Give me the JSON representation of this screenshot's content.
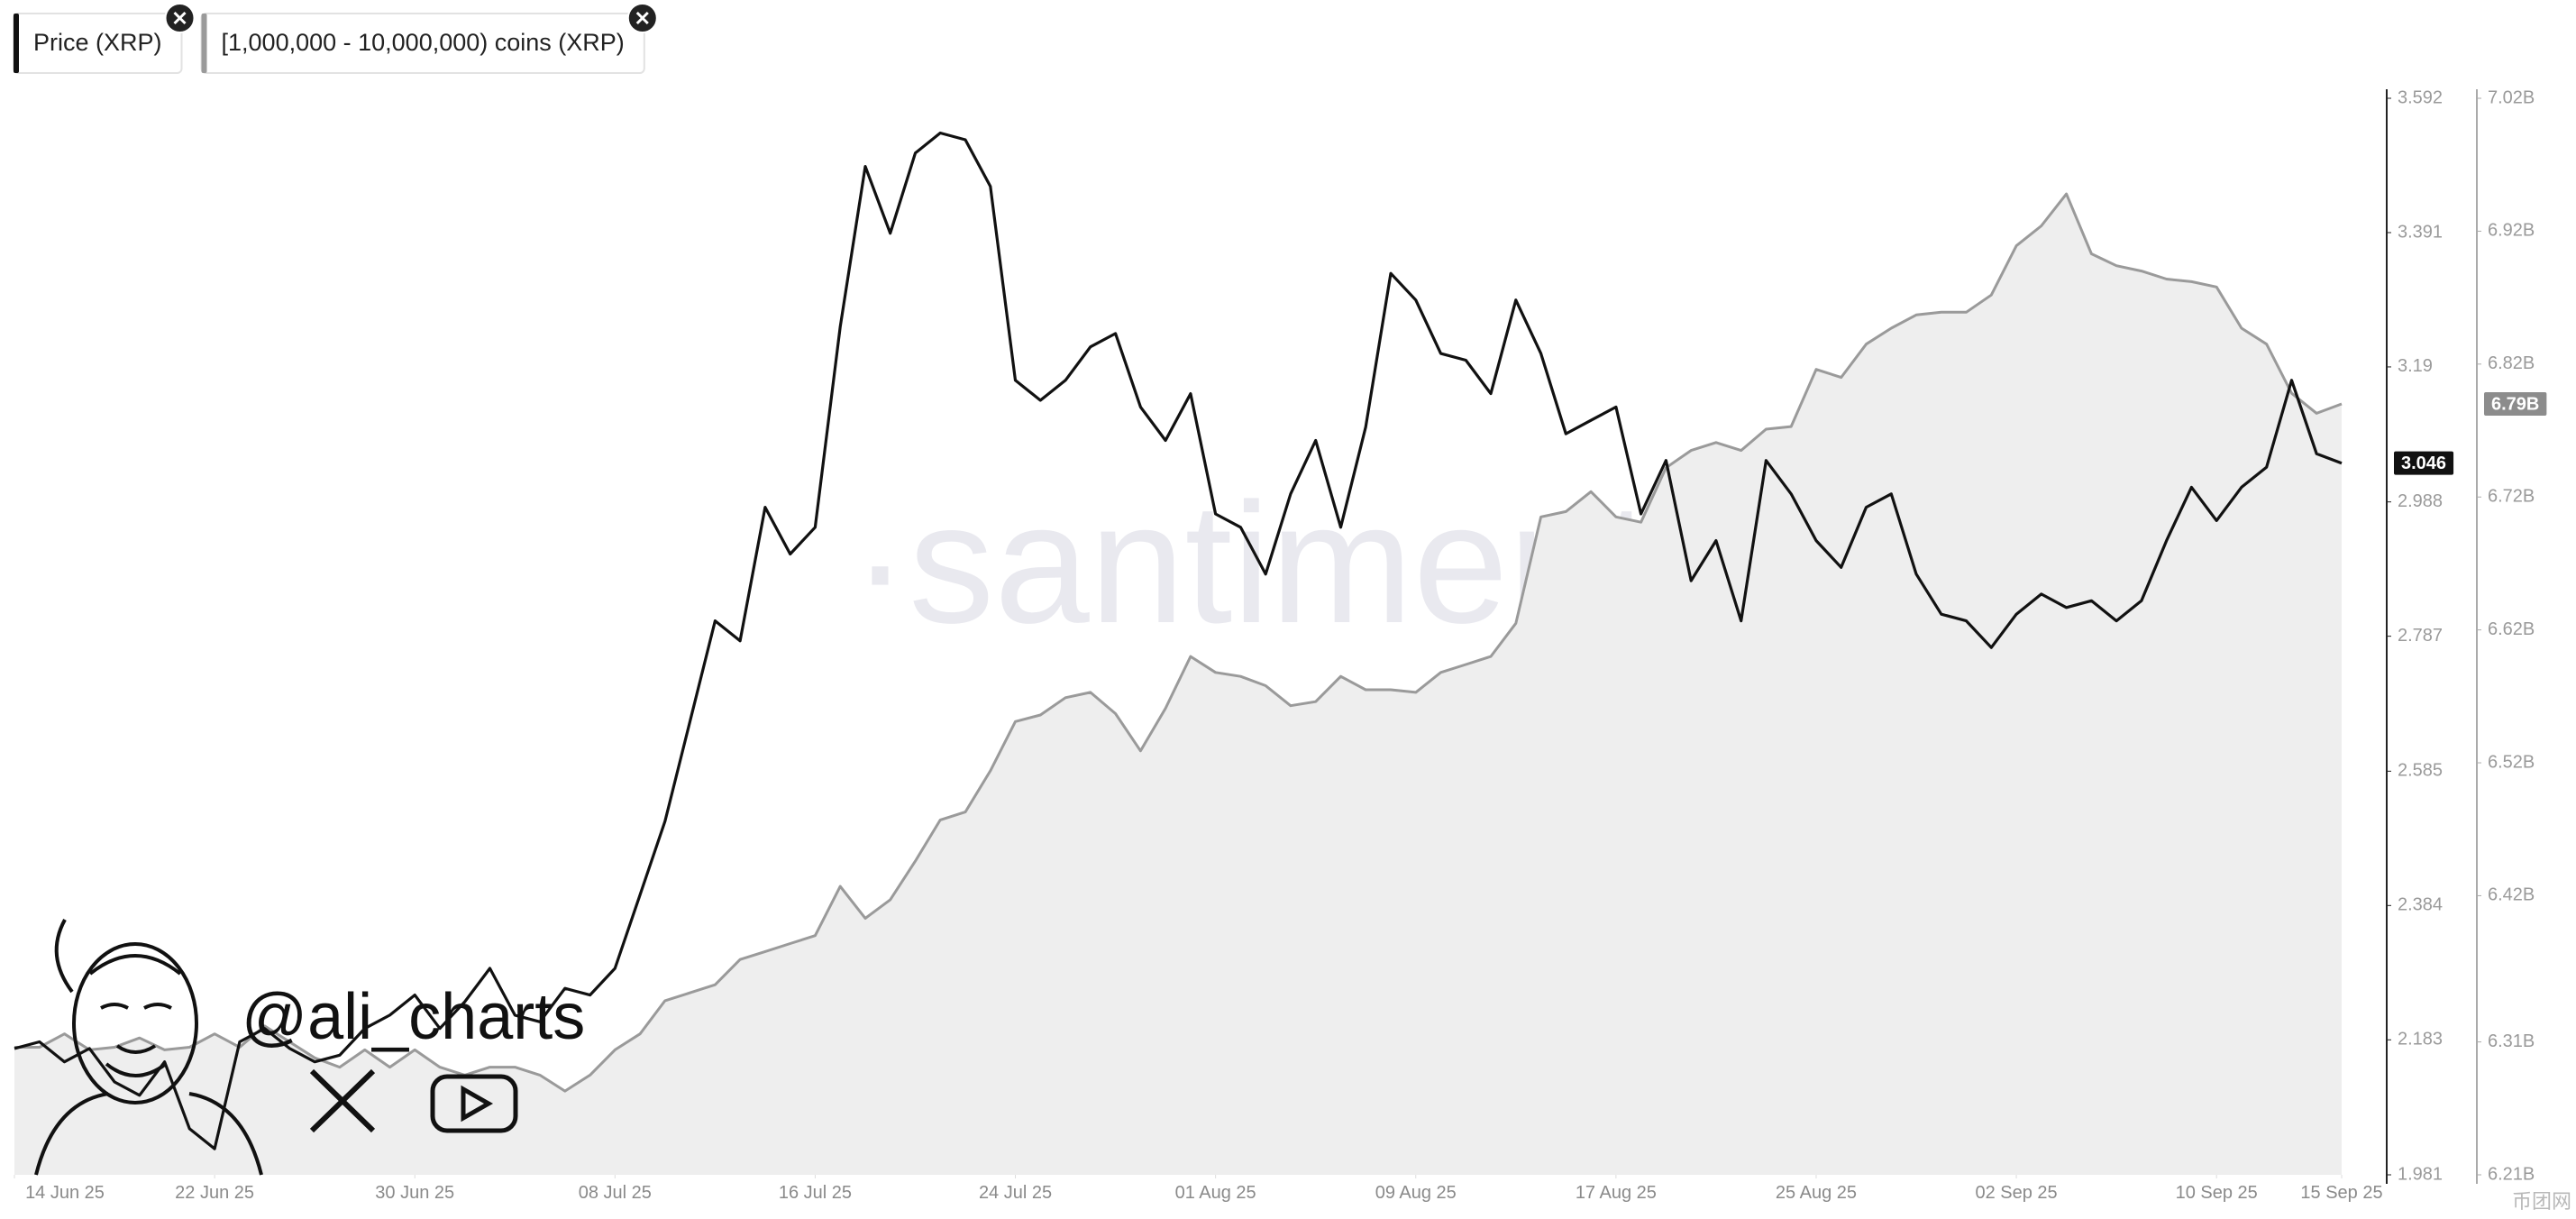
{
  "chart_data": {
    "type": "line",
    "x": [
      "2025-06-14",
      "2025-06-15",
      "2025-06-16",
      "2025-06-17",
      "2025-06-18",
      "2025-06-19",
      "2025-06-20",
      "2025-06-21",
      "2025-06-22",
      "2025-06-23",
      "2025-06-24",
      "2025-06-25",
      "2025-06-26",
      "2025-06-27",
      "2025-06-28",
      "2025-06-29",
      "2025-06-30",
      "2025-07-01",
      "2025-07-02",
      "2025-07-03",
      "2025-07-04",
      "2025-07-05",
      "2025-07-06",
      "2025-07-07",
      "2025-07-08",
      "2025-07-09",
      "2025-07-10",
      "2025-07-11",
      "2025-07-12",
      "2025-07-13",
      "2025-07-14",
      "2025-07-15",
      "2025-07-16",
      "2025-07-17",
      "2025-07-18",
      "2025-07-19",
      "2025-07-20",
      "2025-07-21",
      "2025-07-22",
      "2025-07-23",
      "2025-07-24",
      "2025-07-25",
      "2025-07-26",
      "2025-07-27",
      "2025-07-28",
      "2025-07-29",
      "2025-07-30",
      "2025-07-31",
      "2025-08-01",
      "2025-08-02",
      "2025-08-03",
      "2025-08-04",
      "2025-08-05",
      "2025-08-06",
      "2025-08-07",
      "2025-08-08",
      "2025-08-09",
      "2025-08-10",
      "2025-08-11",
      "2025-08-12",
      "2025-08-13",
      "2025-08-14",
      "2025-08-15",
      "2025-08-16",
      "2025-08-17",
      "2025-08-18",
      "2025-08-19",
      "2025-08-20",
      "2025-08-21",
      "2025-08-22",
      "2025-08-23",
      "2025-08-24",
      "2025-08-25",
      "2025-08-26",
      "2025-08-27",
      "2025-08-28",
      "2025-08-29",
      "2025-08-30",
      "2025-08-31",
      "2025-09-01",
      "2025-09-02",
      "2025-09-03",
      "2025-09-04",
      "2025-09-05",
      "2025-09-06",
      "2025-09-07",
      "2025-09-08",
      "2025-09-09",
      "2025-09-10",
      "2025-09-11",
      "2025-09-12",
      "2025-09-13",
      "2025-09-14",
      "2025-09-15"
    ],
    "xlim": [
      "2025-06-14",
      "2025-09-15"
    ],
    "xticks": [
      {
        "value": "2025-06-14",
        "label": "14 Jun 25"
      },
      {
        "value": "2025-06-22",
        "label": "22 Jun 25"
      },
      {
        "value": "2025-06-30",
        "label": "30 Jun 25"
      },
      {
        "value": "2025-07-08",
        "label": "08 Jul 25"
      },
      {
        "value": "2025-07-16",
        "label": "16 Jul 25"
      },
      {
        "value": "2025-07-24",
        "label": "24 Jul 25"
      },
      {
        "value": "2025-08-01",
        "label": "01 Aug 25"
      },
      {
        "value": "2025-08-09",
        "label": "09 Aug 25"
      },
      {
        "value": "2025-08-17",
        "label": "17 Aug 25"
      },
      {
        "value": "2025-08-25",
        "label": "25 Aug 25"
      },
      {
        "value": "2025-09-02",
        "label": "02 Sep 25"
      },
      {
        "value": "2025-09-10",
        "label": "10 Sep 25"
      },
      {
        "value": "2025-09-15",
        "label": "15 Sep 25"
      }
    ],
    "ylim": [
      1.981,
      3.592
    ],
    "yticks": [
      1.981,
      2.183,
      2.384,
      2.585,
      2.787,
      2.988,
      3.19,
      3.391,
      3.592
    ],
    "y2lim": [
      6210000000,
      7020000000
    ],
    "y2ticks": [
      {
        "value": 6210000000,
        "label": "6.21B"
      },
      {
        "value": 6310000000,
        "label": "6.31B"
      },
      {
        "value": 6420000000,
        "label": "6.42B"
      },
      {
        "value": 6520000000,
        "label": "6.52B"
      },
      {
        "value": 6620000000,
        "label": "6.62B"
      },
      {
        "value": 6720000000,
        "label": "6.72B"
      },
      {
        "value": 6820000000,
        "label": "6.82B"
      },
      {
        "value": 6920000000,
        "label": "6.92B"
      },
      {
        "value": 7020000000,
        "label": "7.02B"
      }
    ],
    "grid": false,
    "series": [
      {
        "name": "Price (XRP)",
        "color": "#111111",
        "axis": "y",
        "values": [
          2.17,
          2.18,
          2.15,
          2.17,
          2.12,
          2.1,
          2.15,
          2.05,
          2.02,
          2.18,
          2.2,
          2.17,
          2.15,
          2.16,
          2.2,
          2.22,
          2.25,
          2.2,
          2.24,
          2.29,
          2.22,
          2.21,
          2.26,
          2.25,
          2.29,
          2.4,
          2.51,
          2.66,
          2.81,
          2.78,
          2.98,
          2.91,
          2.95,
          3.25,
          3.49,
          3.39,
          3.51,
          3.54,
          3.53,
          3.46,
          3.17,
          3.14,
          3.17,
          3.22,
          3.24,
          3.13,
          3.08,
          3.15,
          2.97,
          2.95,
          2.88,
          3.0,
          3.08,
          2.95,
          3.1,
          3.33,
          3.29,
          3.21,
          3.2,
          3.15,
          3.29,
          3.21,
          3.09,
          3.11,
          3.13,
          2.97,
          3.05,
          2.87,
          2.93,
          2.81,
          3.05,
          3.0,
          2.93,
          2.89,
          2.98,
          3.0,
          2.88,
          2.82,
          2.81,
          2.77,
          2.82,
          2.85,
          2.83,
          2.84,
          2.81,
          2.84,
          2.93,
          3.01,
          2.96,
          3.01,
          3.04,
          3.17,
          3.06,
          3.046
        ]
      },
      {
        "name": "[1,000,000 - 10,000,000) coins (XRP)",
        "color": "#9a9a9a",
        "fill": "#eeeeee",
        "axis": "y2",
        "last_value_label": "6.79B",
        "values": [
          6306000000,
          6306000000,
          6316000000,
          6304000000,
          6306000000,
          6313000000,
          6304000000,
          6306000000,
          6316000000,
          6306000000,
          6322000000,
          6310000000,
          6298000000,
          6291000000,
          6304000000,
          6291000000,
          6304000000,
          6291000000,
          6285000000,
          6291000000,
          6291000000,
          6285000000,
          6273000000,
          6285000000,
          6304000000,
          6316000000,
          6341000000,
          6347000000,
          6353000000,
          6372000000,
          6378000000,
          6384000000,
          6390000000,
          6427000000,
          6403000000,
          6417000000,
          6446000000,
          6477000000,
          6483000000,
          6514000000,
          6551000000,
          6556000000,
          6569000000,
          6573000000,
          6557000000,
          6529000000,
          6561000000,
          6600000000,
          6588000000,
          6585000000,
          6578000000,
          6563000000,
          6566000000,
          6585000000,
          6575000000,
          6575000000,
          6573000000,
          6588000000,
          6594000000,
          6600000000,
          6625000000,
          6705000000,
          6709000000,
          6724000000,
          6705000000,
          6701000000,
          6742000000,
          6755000000,
          6761000000,
          6755000000,
          6771000000,
          6773000000,
          6816000000,
          6810000000,
          6835000000,
          6847000000,
          6857000000,
          6859000000,
          6859000000,
          6872000000,
          6909000000,
          6924000000,
          6948000000,
          6903000000,
          6894000000,
          6890000000,
          6884000000,
          6882000000,
          6878000000,
          6847000000,
          6835000000,
          6798000000,
          6783000000,
          6790000000
        ]
      }
    ],
    "watermark": "·santiment·",
    "author": "@ali_charts",
    "source_mark": "币团网"
  }
}
